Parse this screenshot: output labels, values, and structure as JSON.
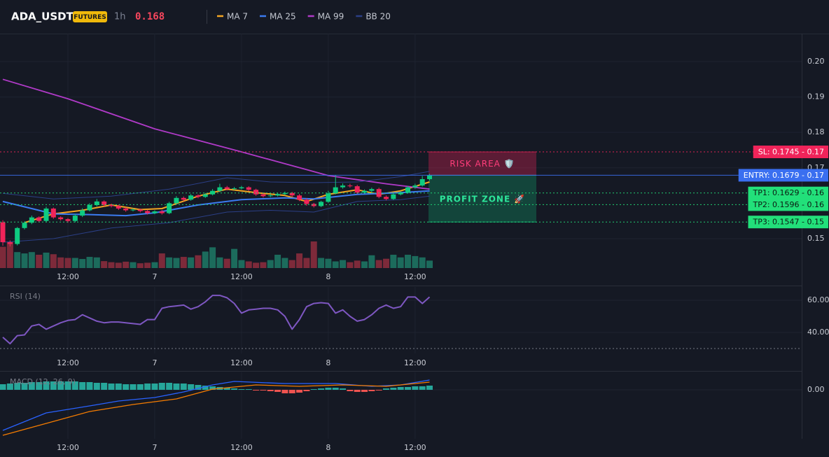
{
  "chart_data": [
    {
      "type": "candlestick",
      "title": "ADA_USDT",
      "badge": "FUTURES",
      "interval": "1h",
      "last_price": 0.168,
      "x": [
        3,
        4,
        5,
        6,
        7,
        8,
        9,
        10,
        11,
        12,
        13,
        14,
        15,
        16,
        17,
        18,
        19,
        20,
        21,
        22,
        23,
        24,
        25,
        26,
        27,
        28,
        29,
        30,
        31,
        32,
        33,
        34,
        35,
        36,
        37,
        38,
        39,
        40,
        41,
        42,
        43,
        44,
        45,
        46,
        47,
        48,
        49,
        50,
        51,
        52,
        53,
        54,
        55,
        56,
        57,
        58,
        59,
        60,
        61,
        62
      ],
      "open": [
        0.1546,
        0.149,
        0.1485,
        0.153,
        0.1545,
        0.156,
        0.155,
        0.1585,
        0.156,
        0.1555,
        0.155,
        0.1565,
        0.158,
        0.1595,
        0.1605,
        0.1595,
        0.1592,
        0.1585,
        0.158,
        0.1582,
        0.1578,
        0.1572,
        0.1577,
        0.1572,
        0.16,
        0.1615,
        0.161,
        0.1622,
        0.1618,
        0.1625,
        0.1635,
        0.1645,
        0.164,
        0.1642,
        0.1645,
        0.1638,
        0.1625,
        0.162,
        0.1622,
        0.1626,
        0.1629,
        0.1622,
        0.161,
        0.1598,
        0.1592,
        0.1604,
        0.1628,
        0.1645,
        0.165,
        0.1648,
        0.163,
        0.1635,
        0.164,
        0.1618,
        0.1612,
        0.1625,
        0.163,
        0.1645,
        0.165,
        0.1668
      ],
      "high": [
        0.1552,
        0.1495,
        0.1533,
        0.1549,
        0.1565,
        0.1563,
        0.159,
        0.1588,
        0.1563,
        0.1558,
        0.157,
        0.1586,
        0.16,
        0.1612,
        0.1608,
        0.1599,
        0.1596,
        0.1589,
        0.1586,
        0.1585,
        0.1582,
        0.158,
        0.1581,
        0.1604,
        0.162,
        0.1619,
        0.1626,
        0.1625,
        0.1629,
        0.164,
        0.1655,
        0.1649,
        0.1646,
        0.1649,
        0.1648,
        0.1641,
        0.1628,
        0.1626,
        0.1629,
        0.1633,
        0.1632,
        0.1626,
        0.1614,
        0.1601,
        0.1607,
        0.1635,
        0.168,
        0.1656,
        0.1655,
        0.1652,
        0.1639,
        0.1644,
        0.1644,
        0.1622,
        0.1628,
        0.1634,
        0.1649,
        0.1655,
        0.1677,
        0.1683
      ],
      "low": [
        0.148,
        0.1478,
        0.1481,
        0.1526,
        0.1541,
        0.1546,
        0.1546,
        0.1556,
        0.1551,
        0.1545,
        0.1546,
        0.1561,
        0.1577,
        0.1591,
        0.1591,
        0.1588,
        0.1581,
        0.1576,
        0.1577,
        0.1574,
        0.1568,
        0.1569,
        0.1568,
        0.1569,
        0.1597,
        0.1606,
        0.1607,
        0.1614,
        0.1615,
        0.1622,
        0.1631,
        0.1636,
        0.1637,
        0.1639,
        0.1634,
        0.1621,
        0.1616,
        0.1617,
        0.1619,
        0.1623,
        0.1618,
        0.1606,
        0.1593,
        0.1588,
        0.1589,
        0.1601,
        0.1625,
        0.1641,
        0.1644,
        0.1626,
        0.1627,
        0.1631,
        0.1614,
        0.1608,
        0.1609,
        0.1622,
        0.1627,
        0.1641,
        0.1647,
        0.1664
      ],
      "close": [
        0.149,
        0.1485,
        0.153,
        0.1545,
        0.156,
        0.155,
        0.1585,
        0.156,
        0.1555,
        0.155,
        0.1565,
        0.158,
        0.1595,
        0.1605,
        0.1595,
        0.1592,
        0.1585,
        0.158,
        0.1582,
        0.1578,
        0.1572,
        0.1577,
        0.1572,
        0.16,
        0.1615,
        0.161,
        0.1622,
        0.1618,
        0.1625,
        0.1635,
        0.1645,
        0.164,
        0.1642,
        0.1645,
        0.1638,
        0.1625,
        0.162,
        0.1622,
        0.1626,
        0.1629,
        0.1622,
        0.161,
        0.1598,
        0.1592,
        0.1604,
        0.1628,
        0.1645,
        0.165,
        0.1648,
        0.163,
        0.1635,
        0.164,
        0.1618,
        0.1612,
        0.1625,
        0.163,
        0.1645,
        0.165,
        0.1668,
        0.1679
      ],
      "volume": [
        80,
        100,
        60,
        55,
        60,
        50,
        58,
        52,
        40,
        38,
        38,
        34,
        42,
        40,
        26,
        22,
        20,
        24,
        22,
        18,
        20,
        22,
        55,
        40,
        38,
        42,
        40,
        48,
        62,
        78,
        40,
        35,
        72,
        30,
        25,
        20,
        22,
        30,
        50,
        38,
        30,
        55,
        38,
        100,
        38,
        35,
        25,
        30,
        22,
        28,
        25,
        48,
        30,
        35,
        50,
        40,
        50,
        45,
        40,
        28
      ],
      "up_color": "#0ecb81",
      "down_color": "#f0245a",
      "up_volume_color": "#1c6b5c",
      "down_volume_color": "#7d2a3a",
      "series": [
        {
          "name": "MA 7",
          "color": "#f5a623",
          "x": [
            6,
            10,
            14,
            18,
            22,
            25,
            30,
            34,
            38,
            42,
            45,
            48,
            52,
            55,
            58,
            62
          ],
          "values": [
            0.1545,
            0.157,
            0.158,
            0.1595,
            0.1582,
            0.1585,
            0.162,
            0.164,
            0.163,
            0.1622,
            0.1605,
            0.1625,
            0.1638,
            0.1625,
            0.1635,
            0.166
          ]
        },
        {
          "name": "MA 25",
          "color": "#3b7bf0",
          "x": [
            3,
            6,
            10,
            15,
            20,
            24,
            30,
            36,
            42,
            46,
            52,
            58,
            62
          ],
          "values": [
            0.1605,
            0.159,
            0.157,
            0.1568,
            0.1565,
            0.1573,
            0.1595,
            0.161,
            0.1615,
            0.1612,
            0.1625,
            0.163,
            0.1635
          ]
        },
        {
          "name": "MA 99",
          "color": "#b03ac8",
          "x": [
            3,
            12,
            24,
            36,
            48,
            56,
            62
          ],
          "values": [
            0.195,
            0.1895,
            0.181,
            0.1745,
            0.1678,
            0.1655,
            0.164
          ]
        },
        {
          "name": "BB 20",
          "color": "#2b3f86",
          "x": [
            3,
            10,
            18,
            26,
            34,
            40,
            46,
            52,
            58,
            62
          ],
          "upper": [
            0.1628,
            0.1612,
            0.162,
            0.164,
            0.1672,
            0.166,
            0.1658,
            0.166,
            0.1675,
            0.169
          ],
          "lower": [
            0.149,
            0.15,
            0.153,
            0.1545,
            0.1575,
            0.158,
            0.1575,
            0.1605,
            0.161,
            0.162
          ]
        }
      ],
      "levels": [
        {
          "label": "SL: 0.1745 - 0.17",
          "value": 0.1745,
          "color": "#f0245a",
          "style": "dotted"
        },
        {
          "label": "ENTRY: 0.1679 - 0.17",
          "value": 0.1679,
          "color": "#3a6ff0",
          "style": "solid"
        },
        {
          "label": "TP1: 0.1629 - 0.16",
          "value": 0.1629,
          "color": "#22e07a",
          "style": "dotted"
        },
        {
          "label": "TP2: 0.1596 - 0.16",
          "value": 0.1596,
          "color": "#22e07a",
          "style": "dotted"
        },
        {
          "label": "TP3: 0.1547 - 0.15",
          "value": 0.1547,
          "color": "#22e07a",
          "style": "dotted"
        }
      ],
      "zones": [
        {
          "label": "RISK AREA 🛡️",
          "from": 0.1745,
          "to": 0.1679,
          "color": "#f0245a"
        },
        {
          "label": "PROFIT ZONE 🚀",
          "from": 0.1679,
          "to": 0.1547,
          "color": "#0ecb81"
        }
      ],
      "xlim": [
        2.61,
        113.45
      ],
      "ylim": [
        0.1417,
        0.2079
      ],
      "xticks": [
        {
          "value": 12,
          "label": "12:00"
        },
        {
          "value": 24,
          "label": "7"
        },
        {
          "value": 36,
          "label": "12:00"
        },
        {
          "value": 48,
          "label": "8"
        },
        {
          "value": 60,
          "label": "12:00"
        }
      ],
      "yticks": [
        0.15,
        0.17,
        0.18,
        0.19,
        {
          "value": 0.2,
          "label": "0.20"
        }
      ],
      "grid": true
    },
    {
      "type": "line",
      "title": "RSI (14)",
      "color": "#7e57c2",
      "x": [
        3,
        4,
        5,
        6,
        7,
        8,
        9,
        10,
        11,
        12,
        13,
        14,
        15,
        16,
        17,
        18,
        19,
        20,
        21,
        22,
        23,
        24,
        25,
        26,
        27,
        28,
        29,
        30,
        31,
        32,
        33,
        34,
        35,
        36,
        37,
        38,
        39,
        40,
        41,
        42,
        43,
        44,
        45,
        46,
        47,
        48,
        49,
        50,
        51,
        52,
        53,
        54,
        55,
        56,
        57,
        58,
        59,
        60,
        61,
        62
      ],
      "values": [
        37,
        33,
        38,
        38.5,
        44,
        45,
        42,
        44,
        46,
        47.5,
        48,
        51,
        49,
        47,
        46,
        46.5,
        46.5,
        46,
        45.5,
        45,
        48,
        48,
        55,
        56,
        56.5,
        57,
        54.5,
        56,
        59,
        63,
        63,
        61.5,
        58,
        52,
        54,
        54.5,
        55,
        55,
        54,
        50,
        42,
        48,
        56,
        58,
        58.5,
        58,
        52,
        54,
        50,
        47,
        48,
        51,
        55,
        57,
        55,
        56,
        62,
        62,
        58,
        62
      ],
      "hline": 30,
      "xlim": [
        2.61,
        113.45
      ],
      "ylim": [
        26.96,
        68.26
      ],
      "xticks": [
        {
          "value": 12,
          "label": "12:00"
        },
        {
          "value": 24,
          "label": "7"
        },
        {
          "value": 36,
          "label": "12:00"
        },
        {
          "value": 48,
          "label": "8"
        },
        {
          "value": 60,
          "label": "12:00"
        }
      ],
      "yticks": [
        {
          "value": 40,
          "label": "40.00"
        },
        {
          "value": 60,
          "label": "60.00"
        }
      ],
      "grid": true
    },
    {
      "type": "macd",
      "title": "MACD (12, 26, 9)",
      "x": [
        3,
        4,
        5,
        6,
        7,
        8,
        9,
        10,
        11,
        12,
        13,
        14,
        15,
        16,
        17,
        18,
        19,
        20,
        21,
        22,
        23,
        24,
        25,
        26,
        27,
        28,
        29,
        30,
        31,
        32,
        33,
        34,
        35,
        36,
        37,
        38,
        39,
        40,
        41,
        42,
        43,
        44,
        45,
        46,
        47,
        48,
        49,
        50,
        51,
        52,
        53,
        54,
        55,
        56,
        57,
        58,
        59,
        60,
        61,
        62
      ],
      "histogram": [
        0.0008,
        0.0009,
        0.001,
        0.001,
        0.0011,
        0.0011,
        0.0012,
        0.0012,
        0.0012,
        0.0012,
        0.0012,
        0.0011,
        0.0011,
        0.001,
        0.001,
        0.0009,
        0.0009,
        0.0008,
        0.0008,
        0.0008,
        0.0009,
        0.0009,
        0.001,
        0.001,
        0.0009,
        0.0009,
        0.0008,
        0.0007,
        0.0006,
        0.0005,
        0.0004,
        0.0003,
        0.0002,
        0.0001,
        0.0001,
        -0.0001,
        -0.0001,
        -0.0002,
        -0.0003,
        -0.0005,
        -0.0005,
        -0.0004,
        -0.0002,
        0.0001,
        0.0002,
        0.0003,
        0.0003,
        0.0002,
        -0.0002,
        -0.0003,
        -0.0003,
        -0.0002,
        -0.0001,
        0.0002,
        0.0003,
        0.0004,
        0.0004,
        0.0005,
        0.0005,
        0.0006
      ],
      "up_color": "#26a69a",
      "down_color": "#ef5350",
      "macd": {
        "color": "#2962ff",
        "x": [
          3,
          9,
          15,
          19,
          24,
          28,
          32,
          35,
          42,
          49,
          54,
          58,
          62
        ],
        "values": [
          -0.0058,
          -0.0033,
          -0.0023,
          -0.0016,
          -0.0011,
          -0.0003,
          0.0007,
          0.0012,
          0.0009,
          0.0009,
          0.0005,
          0.0007,
          0.0014
        ]
      },
      "signal": {
        "color": "#f57c00",
        "x": [
          3,
          9,
          15,
          21,
          27,
          32,
          38,
          44,
          50,
          56,
          62
        ],
        "values": [
          -0.0065,
          -0.0048,
          -0.0031,
          -0.0021,
          -0.0013,
          0.0001,
          0.0007,
          0.0005,
          0.0007,
          0.0005,
          0.0011
        ]
      },
      "xlim": [
        2.61,
        113.45
      ],
      "ylim": [
        -0.007,
        0.0025
      ],
      "xticks": [
        {
          "value": 12,
          "label": "12:00"
        },
        {
          "value": 24,
          "label": "7"
        },
        {
          "value": 36,
          "label": "12:00"
        },
        {
          "value": 48,
          "label": "8"
        },
        {
          "value": 60,
          "label": "12:00"
        }
      ],
      "yticks": [
        {
          "value": 0,
          "label": "0.00"
        }
      ],
      "grid": true
    }
  ]
}
